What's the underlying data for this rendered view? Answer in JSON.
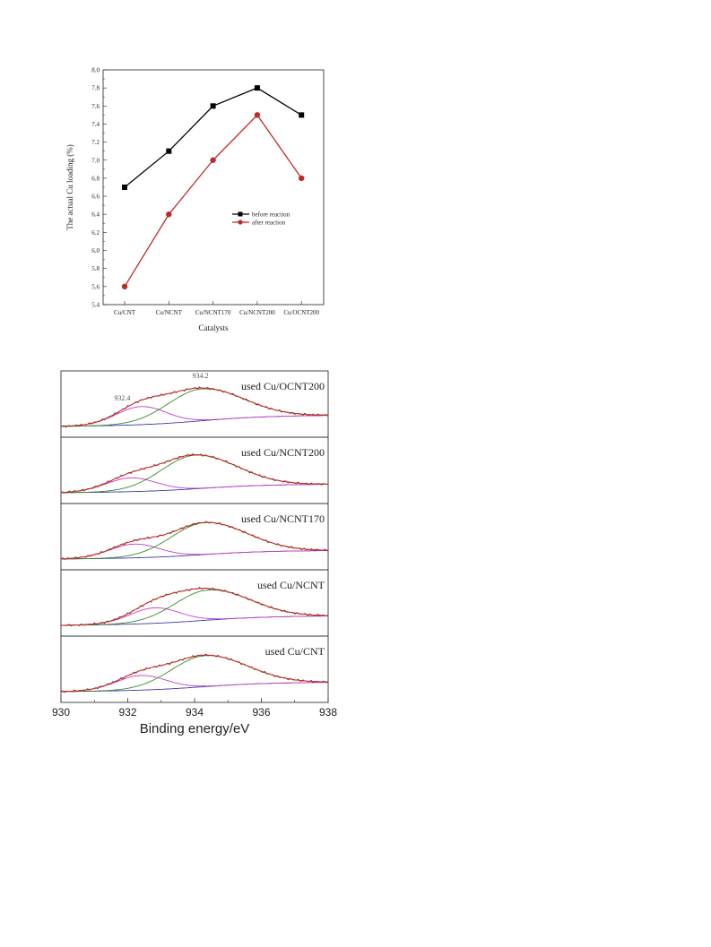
{
  "chart_data": [
    {
      "type": "line",
      "title": "",
      "xlabel": "Catalysts",
      "ylabel": "The actual Cu loading (%)",
      "categories": [
        "Cu/CNT",
        "Cu/NCNT",
        "Cu/NCNT170",
        "Cu/NCNT200",
        "Cu/OCNT200"
      ],
      "ylim": [
        5.4,
        8.0
      ],
      "yticks": [
        "5.4",
        "5.6",
        "5.8",
        "6.0",
        "6.2",
        "6.4",
        "6.6",
        "6.8",
        "7.0",
        "7.2",
        "7.4",
        "7.6",
        "7.8",
        "8.0"
      ],
      "legend_position": "right",
      "series": [
        {
          "name": "before reaction",
          "values": [
            6.7,
            7.1,
            7.6,
            7.8,
            7.5
          ],
          "color": "#000000",
          "marker": "square"
        },
        {
          "name": "after reaction",
          "values": [
            5.6,
            6.4,
            7.0,
            7.5,
            6.8
          ],
          "color": "#c0282d",
          "marker": "circle"
        }
      ]
    },
    {
      "type": "line",
      "title": "",
      "xlabel": "Binding energy/eV",
      "ylabel": "",
      "xlim": [
        930,
        938
      ],
      "xticks": [
        "930",
        "932",
        "934",
        "936",
        "938"
      ],
      "panels": [
        {
          "label": "used Cu/OCNT200",
          "peak1_center": 932.4,
          "peak1_amp": 0.42,
          "peak2_center": 934.2,
          "peak2_amp": 0.74,
          "base_start": 0.0,
          "base_end": 0.26,
          "annotations": [
            "932.4",
            "934.2"
          ]
        },
        {
          "label": "used Cu/NCNT200",
          "peak1_center": 932.1,
          "peak1_amp": 0.32,
          "peak2_center": 934.0,
          "peak2_amp": 0.78,
          "base_start": 0.0,
          "base_end": 0.2,
          "annotations": []
        },
        {
          "label": "used Cu/NCNT170",
          "peak1_center": 932.2,
          "peak1_amp": 0.32,
          "peak2_center": 934.3,
          "peak2_amp": 0.74,
          "base_start": 0.0,
          "base_end": 0.2,
          "annotations": []
        },
        {
          "label": "used Cu/NCNT",
          "peak1_center": 932.8,
          "peak1_amp": 0.36,
          "peak2_center": 934.4,
          "peak2_amp": 0.7,
          "base_start": 0.0,
          "base_end": 0.22,
          "annotations": []
        },
        {
          "label": "used Cu/CNT",
          "peak1_center": 932.4,
          "peak1_amp": 0.34,
          "peak2_center": 934.3,
          "peak2_amp": 0.72,
          "base_start": 0.0,
          "base_end": 0.22,
          "annotations": []
        }
      ],
      "colors": {
        "envelope_raw": "#6b2a1a",
        "envelope_fit": "#d43030",
        "peak_low": "#c040c0",
        "peak_high": "#3a8a2a",
        "background": "#3a3ab0"
      }
    }
  ]
}
